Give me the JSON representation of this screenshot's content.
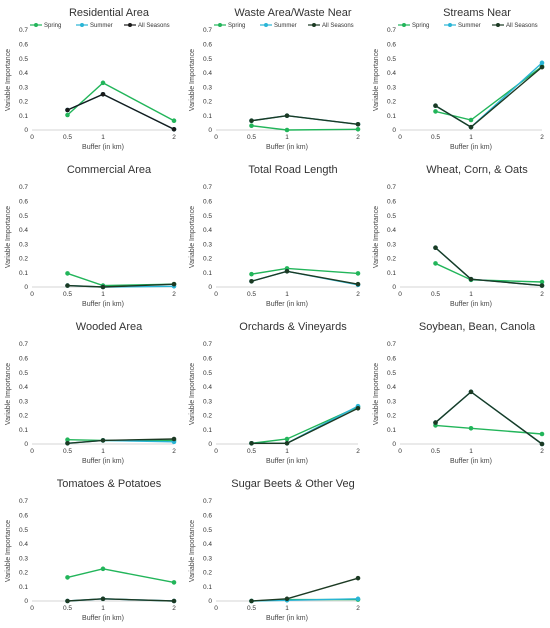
{
  "colors": {
    "spring": "#22b55a",
    "summer": "#29b5d6",
    "all_seasons": "#1c3a23"
  },
  "legend_labels": [
    "Spring",
    "Summer",
    "All Seasons"
  ],
  "chart_data": [
    {
      "type": "line",
      "title": "Residential Area",
      "xlabel": "Buffer (in km)",
      "ylabel": "Variable Importance",
      "x": [
        0.5,
        1,
        2
      ],
      "xlim": [
        0,
        2
      ],
      "ylim": [
        0,
        0.7
      ],
      "legend": "top",
      "all_color": "#1a1a1a",
      "series": [
        {
          "name": "Spring",
          "values": [
            0.105,
            0.33,
            0.065
          ]
        },
        {
          "name": "Summer",
          "values": [
            0.14,
            0.25,
            0.005
          ]
        },
        {
          "name": "All Seasons",
          "values": [
            0.14,
            0.25,
            0.005
          ]
        }
      ]
    },
    {
      "type": "line",
      "title": "Waste Area/Waste Near",
      "xlabel": "Buffer (in km)",
      "ylabel": "Variable Importance",
      "x": [
        0.5,
        1,
        2
      ],
      "xlim": [
        0,
        2
      ],
      "ylim": [
        0,
        0.7
      ],
      "legend": "top",
      "series": [
        {
          "name": "Spring",
          "values": [
            0.03,
            0.0,
            0.005
          ]
        },
        {
          "name": "Summer",
          "values": [
            0.065,
            0.1,
            0.04
          ]
        },
        {
          "name": "All Seasons",
          "values": [
            0.065,
            0.1,
            0.04
          ]
        }
      ]
    },
    {
      "type": "line",
      "title": "Streams Near",
      "xlabel": "Buffer (in km)",
      "ylabel": "Variable Importance",
      "x": [
        0.5,
        1,
        2
      ],
      "xlim": [
        0,
        2
      ],
      "ylim": [
        0,
        0.7
      ],
      "legend": "top",
      "series": [
        {
          "name": "Spring",
          "values": [
            0.13,
            0.07,
            0.445
          ]
        },
        {
          "name": "Summer",
          "values": [
            0.17,
            0.02,
            0.47
          ]
        },
        {
          "name": "All Seasons",
          "values": [
            0.17,
            0.02,
            0.44
          ]
        }
      ]
    },
    {
      "type": "line",
      "title": "Commercial Area",
      "xlabel": "Buffer (in km)",
      "ylabel": "Variable Importance",
      "x": [
        0.5,
        1,
        2
      ],
      "xlim": [
        0,
        2
      ],
      "ylim": [
        0,
        0.7
      ],
      "legend": "none",
      "series": [
        {
          "name": "Spring",
          "values": [
            0.095,
            0.01,
            0.02
          ]
        },
        {
          "name": "Summer",
          "values": [
            0.01,
            0.0,
            0.005
          ]
        },
        {
          "name": "All Seasons",
          "values": [
            0.01,
            0.0,
            0.02
          ]
        }
      ]
    },
    {
      "type": "line",
      "title": "Total Road Length",
      "xlabel": "Buffer (in km)",
      "ylabel": "Variable Importance",
      "x": [
        0.5,
        1,
        2
      ],
      "xlim": [
        0,
        2
      ],
      "ylim": [
        0,
        0.7
      ],
      "legend": "none",
      "series": [
        {
          "name": "Spring",
          "values": [
            0.09,
            0.13,
            0.095
          ]
        },
        {
          "name": "Summer",
          "values": [
            0.04,
            0.11,
            0.015
          ]
        },
        {
          "name": "All Seasons",
          "values": [
            0.04,
            0.11,
            0.02
          ]
        }
      ]
    },
    {
      "type": "line",
      "title": "Wheat, Corn, & Oats",
      "xlabel": "Buffer (in km)",
      "ylabel": "Variable Importance",
      "x": [
        0.5,
        1,
        2
      ],
      "xlim": [
        0,
        2
      ],
      "ylim": [
        0,
        0.7
      ],
      "legend": "none",
      "series": [
        {
          "name": "Spring",
          "values": [
            0.165,
            0.05,
            0.035
          ]
        },
        {
          "name": "Summer",
          "values": [
            0.275,
            0.055,
            0.01
          ]
        },
        {
          "name": "All Seasons",
          "values": [
            0.275,
            0.055,
            0.01
          ]
        }
      ]
    },
    {
      "type": "line",
      "title": "Wooded Area",
      "xlabel": "Buffer (in km)",
      "ylabel": "Variable Importance",
      "x": [
        0.5,
        1,
        2
      ],
      "xlim": [
        0,
        2
      ],
      "ylim": [
        0,
        0.7
      ],
      "legend": "none",
      "series": [
        {
          "name": "Spring",
          "values": [
            0.03,
            0.025,
            0.025
          ]
        },
        {
          "name": "Summer",
          "values": [
            0.005,
            0.025,
            0.015
          ]
        },
        {
          "name": "All Seasons",
          "values": [
            0.005,
            0.025,
            0.035
          ]
        }
      ]
    },
    {
      "type": "line",
      "title": "Orchards & Vineyards",
      "xlabel": "Buffer (in km)",
      "ylabel": "Variable Importance",
      "x": [
        0.5,
        1,
        2
      ],
      "xlim": [
        0,
        2
      ],
      "ylim": [
        0,
        0.7
      ],
      "legend": "none",
      "series": [
        {
          "name": "Spring",
          "values": [
            0.005,
            0.035,
            0.26
          ]
        },
        {
          "name": "Summer",
          "values": [
            0.005,
            0.005,
            0.265
          ]
        },
        {
          "name": "All Seasons",
          "values": [
            0.005,
            0.005,
            0.25
          ]
        }
      ]
    },
    {
      "type": "line",
      "title": "Soybean, Bean, Canola",
      "xlabel": "Buffer (in km)",
      "ylabel": "Variable Importance",
      "x": [
        0.5,
        1,
        2
      ],
      "xlim": [
        0,
        2
      ],
      "ylim": [
        0,
        0.7
      ],
      "legend": "none",
      "series": [
        {
          "name": "Spring",
          "values": [
            0.13,
            0.11,
            0.07
          ]
        },
        {
          "name": "Summer",
          "values": [
            0.15,
            0.365,
            0.0
          ]
        },
        {
          "name": "All Seasons",
          "values": [
            0.15,
            0.365,
            0.0
          ]
        }
      ]
    },
    {
      "type": "line",
      "title": "Tomatoes & Potatoes",
      "xlabel": "Buffer (in km)",
      "ylabel": "Variable Importance",
      "x": [
        0.5,
        1,
        2
      ],
      "xlim": [
        0,
        2
      ],
      "ylim": [
        0,
        0.7
      ],
      "legend": "none",
      "series": [
        {
          "name": "Spring",
          "values": [
            0.165,
            0.225,
            0.13
          ]
        },
        {
          "name": "Summer",
          "values": [
            0.0,
            0.015,
            0.0
          ]
        },
        {
          "name": "All Seasons",
          "values": [
            0.0,
            0.015,
            0.0
          ]
        }
      ]
    },
    {
      "type": "line",
      "title": "Sugar Beets & Other Veg",
      "xlabel": "Buffer (in km)",
      "ylabel": "Variable Importance",
      "x": [
        0.5,
        1,
        2
      ],
      "xlim": [
        0,
        2
      ],
      "ylim": [
        0,
        0.7
      ],
      "legend": "none",
      "series": [
        {
          "name": "Spring",
          "values": [
            0.0,
            0.01,
            0.01
          ]
        },
        {
          "name": "Summer",
          "values": [
            0.0,
            0.005,
            0.015
          ]
        },
        {
          "name": "All Seasons",
          "values": [
            0.0,
            0.015,
            0.16
          ]
        }
      ]
    }
  ]
}
